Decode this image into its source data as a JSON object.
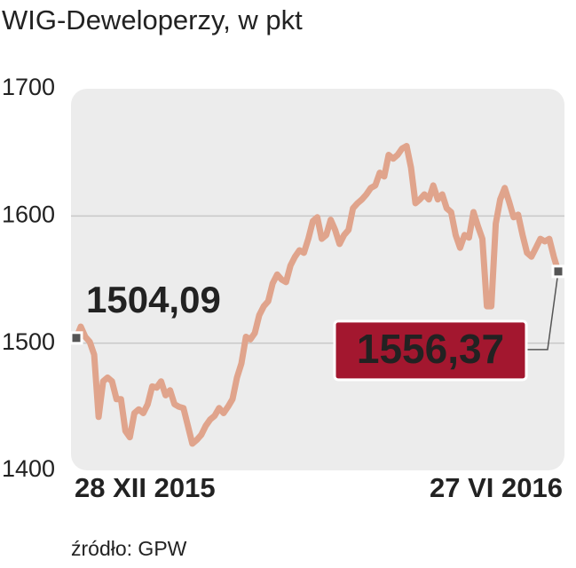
{
  "chart_data": {
    "type": "line",
    "title": "WIG-Deweloperzy, w pkt",
    "source": "źródło: GPW",
    "categories": [
      "28 XII 2015",
      null,
      null,
      null,
      null,
      null,
      null,
      null,
      null,
      null,
      null,
      null,
      null,
      null,
      null,
      null,
      null,
      null,
      null,
      null,
      null,
      null,
      null,
      null,
      null,
      null,
      null,
      null,
      null,
      null,
      null,
      null,
      null,
      null,
      null,
      null,
      null,
      null,
      null,
      null,
      null,
      null,
      null,
      null,
      null,
      null,
      null,
      null,
      null,
      null,
      null,
      null,
      null,
      null,
      null,
      null,
      null,
      null,
      null,
      null,
      null,
      null,
      null,
      null,
      null,
      null,
      null,
      null,
      null,
      null,
      null,
      null,
      null,
      null,
      null,
      null,
      null,
      null,
      null,
      null,
      null,
      null,
      null,
      null,
      null,
      null,
      null,
      null,
      null,
      null,
      null,
      null,
      null,
      null,
      null,
      null,
      null,
      null,
      null,
      null,
      null,
      null,
      null,
      null,
      null,
      null,
      null,
      null,
      "27 VI 2016"
    ],
    "series": [
      {
        "color": "#e0a48c",
        "values": [
          1504.09,
          1513,
          1505,
          1501,
          1491,
          1442,
          1470,
          1473,
          1470,
          1456,
          1456,
          1431,
          1426,
          1445,
          1448,
          1445,
          1452,
          1466,
          1465,
          1470,
          1459,
          1463,
          1452,
          1450,
          1449,
          1435,
          1421,
          1424,
          1428,
          1435,
          1440,
          1443,
          1449,
          1445,
          1450,
          1456,
          1473,
          1484,
          1505,
          1503,
          1508,
          1522,
          1529,
          1533,
          1547,
          1554,
          1550,
          1548,
          1561,
          1568,
          1573,
          1571,
          1582,
          1596,
          1599,
          1582,
          1585,
          1597,
          1589,
          1578,
          1585,
          1589,
          1606,
          1610,
          1613,
          1617,
          1622,
          1624,
          1634,
          1631,
          1648,
          1645,
          1648,
          1653,
          1655,
          1638,
          1610,
          1613,
          1617,
          1613,
          1624,
          1613,
          1617,
          1606,
          1603,
          1585,
          1575,
          1585,
          1583,
          1603,
          1592,
          1582,
          1529,
          1529,
          1594,
          1613,
          1622,
          1611,
          1599,
          1601,
          1585,
          1571,
          1568,
          1575,
          1582,
          1580,
          1582,
          1568,
          1556.37
        ],
        "value_labels": [
          "1504,09",
          null,
          null,
          null,
          null,
          null,
          null,
          null,
          null,
          null,
          null,
          null,
          null,
          null,
          null,
          null,
          null,
          null,
          null,
          null,
          null,
          null,
          null,
          null,
          null,
          null,
          null,
          null,
          null,
          null,
          null,
          null,
          null,
          null,
          null,
          null,
          null,
          null,
          null,
          null,
          null,
          null,
          null,
          null,
          null,
          null,
          null,
          null,
          null,
          null,
          null,
          null,
          null,
          null,
          null,
          null,
          null,
          null,
          null,
          null,
          null,
          null,
          null,
          null,
          null,
          null,
          null,
          null,
          null,
          null,
          null,
          null,
          null,
          null,
          null,
          null,
          null,
          null,
          null,
          null,
          null,
          null,
          null,
          null,
          null,
          null,
          null,
          null,
          null,
          null,
          null,
          null,
          null,
          null,
          null,
          null,
          null,
          null,
          null,
          null,
          null,
          null,
          null,
          null,
          null,
          null,
          null,
          null,
          "1556,37"
        ]
      }
    ],
    "ylim": [
      1400,
      1700
    ],
    "yticks": [
      1400,
      1500,
      1600,
      1700
    ],
    "grid": true
  }
}
